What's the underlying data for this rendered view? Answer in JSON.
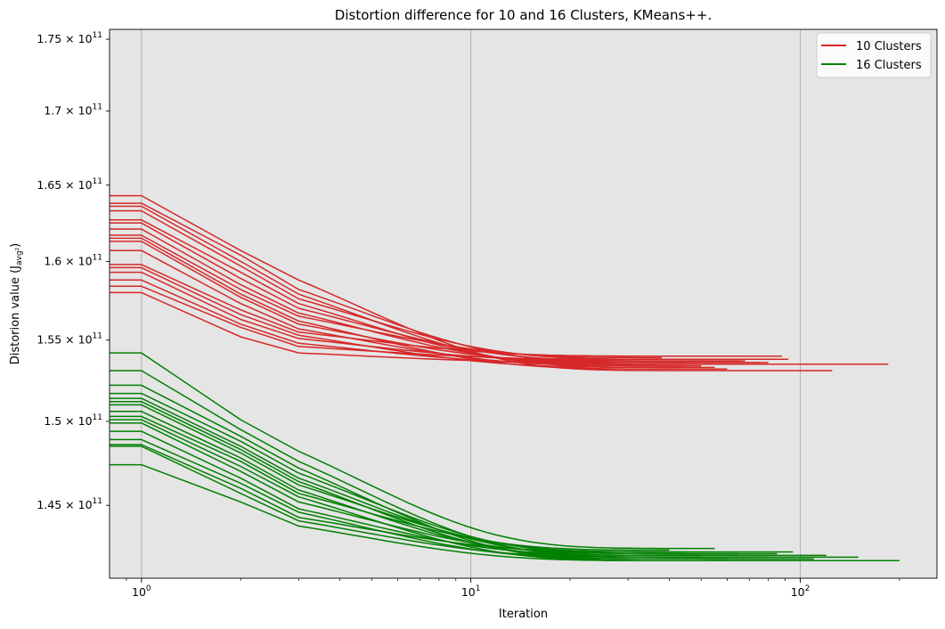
{
  "chart_data": {
    "type": "line",
    "title": "Distortion difference for 10 and 16 Clusters, KMeans++.",
    "xlabel": "Iteration",
    "ylabel_main": "Distorion value (J",
    "ylabel_sub": "avg²",
    "ylabel_end": ")",
    "x_scale": "log",
    "y_scale": "log",
    "xlim": [
      0.8,
      260
    ],
    "ylim": [
      140800000000.0,
      175700000000.0
    ],
    "x_ticks": [
      {
        "value": 1,
        "base": "10",
        "exp": "0"
      },
      {
        "value": 10,
        "base": "10",
        "exp": "1"
      },
      {
        "value": 100,
        "base": "10",
        "exp": "2"
      }
    ],
    "y_ticks": [
      {
        "value": 145000000000.0,
        "mant": "1.45 × 10",
        "exp": "11"
      },
      {
        "value": 150000000000.0,
        "mant": "1.5 × 10",
        "exp": "11"
      },
      {
        "value": 155000000000.0,
        "mant": "1.55 × 10",
        "exp": "11"
      },
      {
        "value": 160000000000.0,
        "mant": "1.6 × 10",
        "exp": "11"
      },
      {
        "value": 165000000000.0,
        "mant": "1.65 × 10",
        "exp": "11"
      },
      {
        "value": 170000000000.0,
        "mant": "1.7 × 10",
        "exp": "11"
      },
      {
        "value": 175000000000.0,
        "mant": "1.75 × 10",
        "exp": "11"
      }
    ],
    "grid": "x-major",
    "legend_position": "top-right",
    "groups": [
      {
        "name": "10 Clusters",
        "color": "#d62728",
        "runs": [
          {
            "start": 164300000000.0,
            "k2": 160700000000.0,
            "k3": 158800000000.0,
            "end": 153100000000.0,
            "n": 125
          },
          {
            "start": 163800000000.0,
            "k2": 160400000000.0,
            "k3": 158200000000.0,
            "end": 153600000000.0,
            "n": 80
          },
          {
            "start": 163600000000.0,
            "k2": 160000000000.0,
            "k3": 157900000000.0,
            "end": 153300000000.0,
            "n": 55
          },
          {
            "start": 163300000000.0,
            "k2": 159700000000.0,
            "k3": 157600000000.0,
            "end": 153800000000.0,
            "n": 92
          },
          {
            "start": 162700000000.0,
            "k2": 159300000000.0,
            "k3": 157300000000.0,
            "end": 153400000000.0,
            "n": 45
          },
          {
            "start": 162500000000.0,
            "k2": 158900000000.0,
            "k3": 157000000000.0,
            "end": 153700000000.0,
            "n": 68
          },
          {
            "start": 162100000000.0,
            "k2": 158500000000.0,
            "k3": 156700000000.0,
            "end": 153500000000.0,
            "n": 185
          },
          {
            "start": 161700000000.0,
            "k2": 158200000000.0,
            "k3": 156500000000.0,
            "end": 153900000000.0,
            "n": 38
          },
          {
            "start": 161500000000.0,
            "k2": 157900000000.0,
            "k3": 156200000000.0,
            "end": 153200000000.0,
            "n": 60
          },
          {
            "start": 161300000000.0,
            "k2": 157700000000.0,
            "k3": 156000000000.0,
            "end": 153600000000.0,
            "n": 75
          },
          {
            "start": 160700000000.0,
            "k2": 157300000000.0,
            "k3": 155700000000.0,
            "end": 153400000000.0,
            "n": 50
          },
          {
            "start": 159800000000.0,
            "k2": 156900000000.0,
            "k3": 155500000000.0,
            "end": 154000000000.0,
            "n": 88
          },
          {
            "start": 159600000000.0,
            "k2": 156600000000.0,
            "k3": 155300000000.0,
            "end": 153300000000.0,
            "n": 42
          },
          {
            "start": 159300000000.0,
            "k2": 156300000000.0,
            "k3": 155100000000.0,
            "end": 153700000000.0,
            "n": 65
          },
          {
            "start": 158800000000.0,
            "k2": 156000000000.0,
            "k3": 154800000000.0,
            "end": 153500000000.0,
            "n": 110
          },
          {
            "start": 158400000000.0,
            "k2": 155800000000.0,
            "k3": 154600000000.0,
            "end": 153800000000.0,
            "n": 58
          },
          {
            "start": 158000000000.0,
            "k2": 155200000000.0,
            "k3": 154200000000.0,
            "end": 153600000000.0,
            "n": 48
          }
        ]
      },
      {
        "name": "16 Clusters",
        "color": "#008000",
        "runs": [
          {
            "start": 154200000000.0,
            "k2": 150100000000.0,
            "k3": 148200000000.0,
            "end": 142500000000.0,
            "n": 55
          },
          {
            "start": 153100000000.0,
            "k2": 149500000000.0,
            "k3": 147600000000.0,
            "end": 142000000000.0,
            "n": 150
          },
          {
            "start": 152200000000.0,
            "k2": 149100000000.0,
            "k3": 147200000000.0,
            "end": 141800000000.0,
            "n": 200
          },
          {
            "start": 151700000000.0,
            "k2": 148800000000.0,
            "k3": 146900000000.0,
            "end": 142200000000.0,
            "n": 85
          },
          {
            "start": 151400000000.0,
            "k2": 148500000000.0,
            "k3": 146600000000.0,
            "end": 142100000000.0,
            "n": 120
          },
          {
            "start": 151200000000.0,
            "k2": 148300000000.0,
            "k3": 146400000000.0,
            "end": 141900000000.0,
            "n": 60
          },
          {
            "start": 151000000000.0,
            "k2": 148100000000.0,
            "k3": 146200000000.0,
            "end": 142300000000.0,
            "n": 95
          },
          {
            "start": 150600000000.0,
            "k2": 147800000000.0,
            "k3": 145900000000.0,
            "end": 142000000000.0,
            "n": 70
          },
          {
            "start": 150300000000.0,
            "k2": 147600000000.0,
            "k3": 145700000000.0,
            "end": 142400000000.0,
            "n": 40
          },
          {
            "start": 150100000000.0,
            "k2": 147300000000.0,
            "k3": 145500000000.0,
            "end": 141800000000.0,
            "n": 175
          },
          {
            "start": 149900000000.0,
            "k2": 147000000000.0,
            "k3": 145200000000.0,
            "end": 142200000000.0,
            "n": 65
          },
          {
            "start": 149400000000.0,
            "k2": 146600000000.0,
            "k3": 144800000000.0,
            "end": 142100000000.0,
            "n": 50
          },
          {
            "start": 148900000000.0,
            "k2": 146300000000.0,
            "k3": 144600000000.0,
            "end": 141900000000.0,
            "n": 110
          },
          {
            "start": 148600000000.0,
            "k2": 146000000000.0,
            "k3": 144300000000.0,
            "end": 142300000000.0,
            "n": 45
          },
          {
            "start": 148500000000.0,
            "k2": 145700000000.0,
            "k3": 144100000000.0,
            "end": 142000000000.0,
            "n": 80
          },
          {
            "start": 147400000000.0,
            "k2": 145200000000.0,
            "k3": 143800000000.0,
            "end": 141800000000.0,
            "n": 90
          }
        ]
      }
    ]
  },
  "colors": {
    "plot_background": "#e5e5e5",
    "grid": "#b0b0b0"
  }
}
